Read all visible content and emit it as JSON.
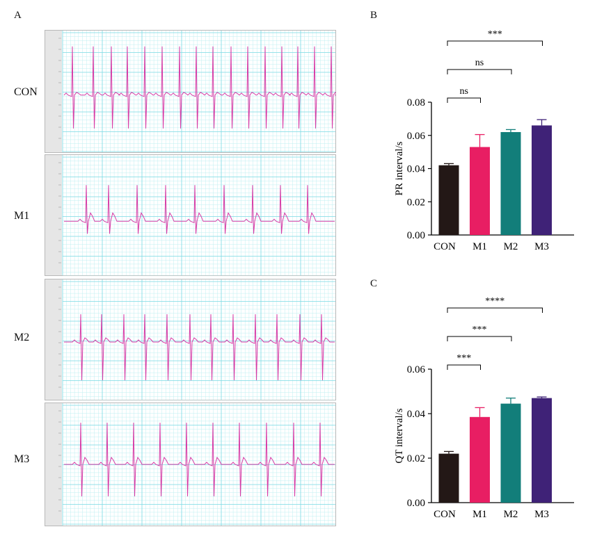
{
  "panels": {
    "a": "A",
    "b": "B",
    "c": "C"
  },
  "ecg": {
    "leads": [
      "CON",
      "M1",
      "M2",
      "M3"
    ],
    "colors": {
      "trace": "#d63ca6",
      "grid_minor": "#bfeff2",
      "grid_major": "#7fdbe5",
      "gutter": "#e6e6e6"
    }
  },
  "chart_data": [
    {
      "type": "bar",
      "panel": "B",
      "categories": [
        "CON",
        "M1",
        "M2",
        "M3"
      ],
      "values": [
        0.042,
        0.053,
        0.062,
        0.066
      ],
      "errors": [
        0.001,
        0.0075,
        0.0015,
        0.0035
      ],
      "ylabel": "PR interval/s",
      "ylim": [
        0,
        0.08
      ],
      "yticks": [
        "0.00",
        "0.02",
        "0.04",
        "0.06",
        "0.08"
      ],
      "colors": [
        "#231816",
        "#e81e63",
        "#127e7a",
        "#3f2277"
      ],
      "significance": [
        {
          "from": 0,
          "to": 1,
          "label": "ns"
        },
        {
          "from": 0,
          "to": 2,
          "label": "ns"
        },
        {
          "from": 0,
          "to": 3,
          "label": "***"
        }
      ]
    },
    {
      "type": "bar",
      "panel": "C",
      "categories": [
        "CON",
        "M1",
        "M2",
        "M3"
      ],
      "values": [
        0.022,
        0.0385,
        0.0445,
        0.047
      ],
      "errors": [
        0.001,
        0.0042,
        0.0025,
        0.0005
      ],
      "ylabel": "QT interval/s",
      "ylim": [
        0,
        0.06
      ],
      "yticks": [
        "0.00",
        "0.02",
        "0.04",
        "0.06"
      ],
      "colors": [
        "#231816",
        "#e81e63",
        "#127e7a",
        "#3f2277"
      ],
      "significance": [
        {
          "from": 0,
          "to": 1,
          "label": "***"
        },
        {
          "from": 0,
          "to": 2,
          "label": "***"
        },
        {
          "from": 0,
          "to": 3,
          "label": "****"
        }
      ]
    }
  ]
}
